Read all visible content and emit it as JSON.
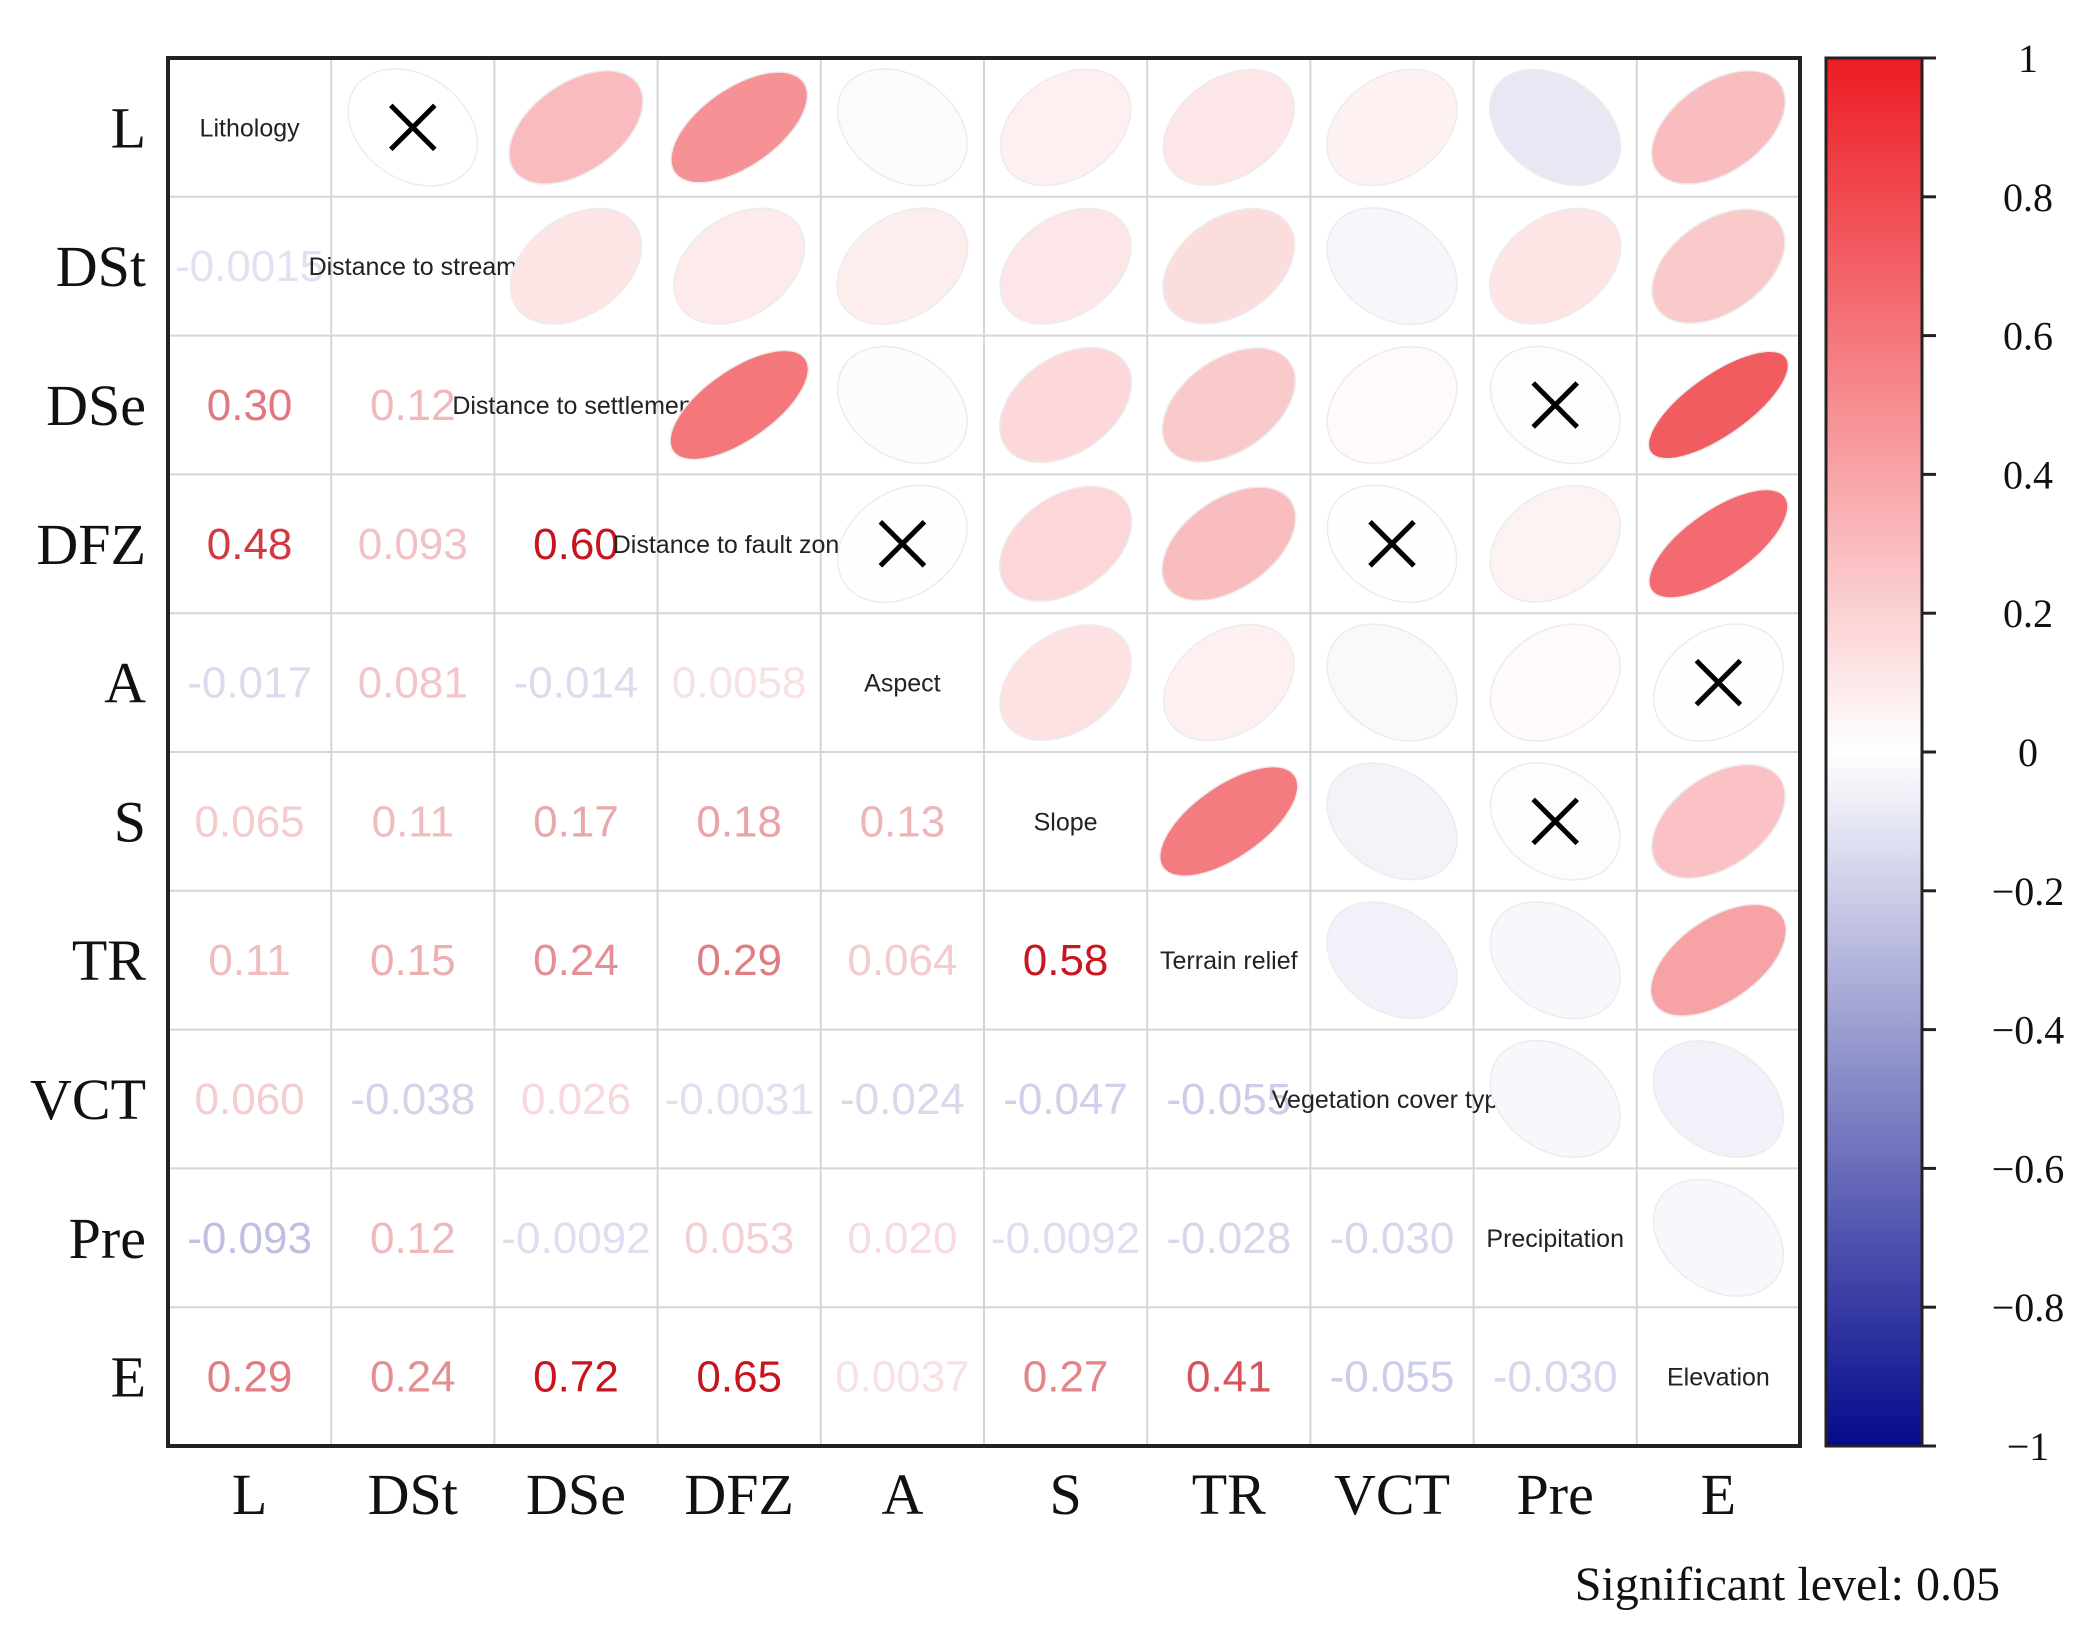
{
  "chart_data": {
    "type": "heatmap",
    "subtype": "mixed correlation matrix (lower: numbers, upper: ellipses)",
    "variables": [
      "L",
      "DSt",
      "DSe",
      "DFZ",
      "A",
      "S",
      "TR",
      "VCT",
      "Pre",
      "E"
    ],
    "variable_names": [
      "Lithology",
      "Distance to stream",
      "Distance to settlement",
      "Distance to fault zones",
      "Aspect",
      "Slope",
      "Terrain relief",
      "Vegetation cover type",
      "Precipitation",
      "Elevation"
    ],
    "lower_labels": [
      [],
      [
        "-0.0015"
      ],
      [
        "0.30",
        "0.12"
      ],
      [
        "0.48",
        "0.093",
        "0.60"
      ],
      [
        "-0.017",
        "0.081",
        "-0.014",
        "0.0058"
      ],
      [
        "0.065",
        "0.11",
        "0.17",
        "0.18",
        "0.13"
      ],
      [
        "0.11",
        "0.15",
        "0.24",
        "0.29",
        "0.064",
        "0.58"
      ],
      [
        "0.060",
        "-0.038",
        "0.026",
        "-0.0031",
        "-0.024",
        "-0.047",
        "-0.055"
      ],
      [
        "-0.093",
        "0.12",
        "-0.0092",
        "0.053",
        "0.020",
        "-0.0092",
        "-0.028",
        "-0.030"
      ],
      [
        "0.29",
        "0.24",
        "0.72",
        "0.65",
        "0.0037",
        "0.27",
        "0.41",
        "-0.055",
        "-0.030"
      ]
    ],
    "insignificant_pairs": [
      [
        "L",
        "DSt"
      ],
      [
        "DSe",
        "Pre"
      ],
      [
        "DFZ",
        "A"
      ],
      [
        "DFZ",
        "VCT"
      ],
      [
        "A",
        "E"
      ],
      [
        "S",
        "Pre"
      ]
    ],
    "colorbar": {
      "range": [
        -1,
        1
      ],
      "ticks": [
        "1",
        "0.8",
        "0.6",
        "0.4",
        "0.2",
        "0",
        "−0.2",
        "−0.4",
        "−0.6",
        "−0.8",
        "−1"
      ],
      "colors": {
        "neg": "#050a8c",
        "zero": "#ffffff",
        "pos": "#ec1c24"
      }
    },
    "significance_note": "Significant level: 0.05"
  }
}
